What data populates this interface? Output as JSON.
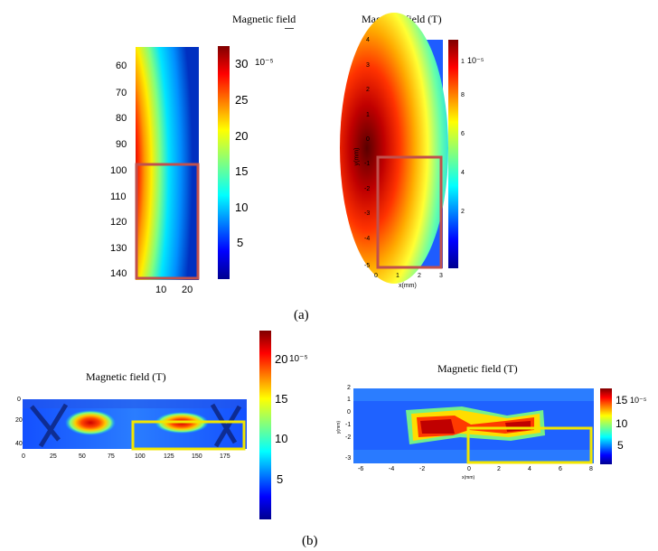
{
  "captions": {
    "a": "(a)",
    "b": "(b)"
  },
  "panel_a_left": {
    "title": "Magnetic field",
    "y_ticks": [
      "60",
      "70",
      "80",
      "90",
      "100",
      "110",
      "120",
      "130",
      "140"
    ],
    "x_ticks": [
      "10",
      "20"
    ],
    "colorbar": {
      "ticks": [
        "30",
        "25",
        "20",
        "15",
        "10",
        "5"
      ],
      "exponent": "10⁻⁵"
    },
    "highlight_color": "#c0504d"
  },
  "panel_a_right": {
    "title": "Magnetic field (T)",
    "ylabel": "y(mm)",
    "xlabel": "x(mm)",
    "y_ticks": [
      "4",
      "3",
      "2",
      "1",
      "0",
      "-1",
      "-2",
      "-3",
      "-4",
      "-5"
    ],
    "x_ticks": [
      "0",
      "1",
      "2",
      "3"
    ],
    "colorbar": {
      "ticks": [
        "1",
        "8",
        "6",
        "4",
        "2"
      ],
      "exponent": "10⁻⁵"
    },
    "highlight_color": "#c0504d"
  },
  "panel_b_left": {
    "title": "Magnetic field (T)",
    "y_ticks": [
      "0",
      "20",
      "40"
    ],
    "x_ticks": [
      "0",
      "25",
      "50",
      "75",
      "100",
      "125",
      "150",
      "175"
    ],
    "colorbar": {
      "ticks": [
        "20",
        "15",
        "10",
        "5"
      ],
      "exponent": "10⁻⁵"
    },
    "highlight_color": "#f2e600"
  },
  "panel_b_right": {
    "title": "Magnetic field (T)",
    "ylabel": "y(mm)",
    "xlabel": "x(mm)",
    "y_ticks": [
      "2",
      "1",
      "0",
      "-1",
      "-2",
      "-3"
    ],
    "x_ticks": [
      "-6",
      "-4",
      "-2",
      "0",
      "2",
      "4",
      "6",
      "8"
    ],
    "colorbar": {
      "ticks": [
        "15",
        "10",
        "5"
      ],
      "exponent": "10⁻⁵"
    },
    "highlight_color": "#f2e600"
  }
}
